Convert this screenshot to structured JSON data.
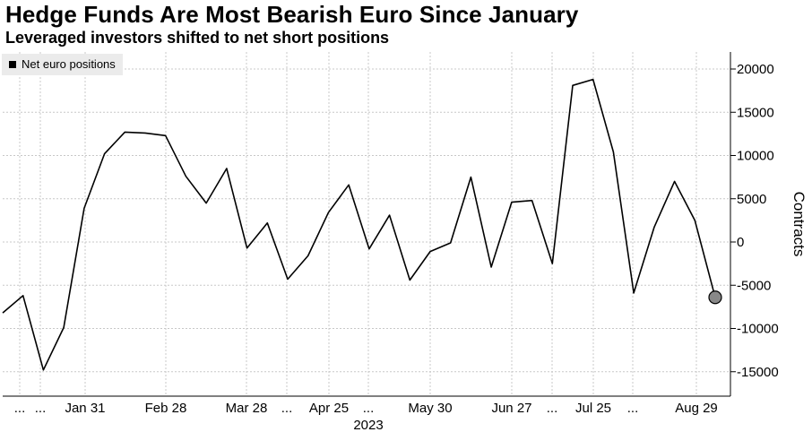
{
  "title": "Hedge Funds Are Most Bearish Euro Since January",
  "subtitle": "Leveraged investors shifted to net short positions",
  "legend": {
    "label": "Net euro positions",
    "color": "#000000"
  },
  "chart_data": {
    "type": "line",
    "title": "Hedge Funds Are Most Bearish Euro Since January",
    "subtitle": "Leveraged investors shifted to net short positions",
    "ylabel": "Contracts",
    "xlabel": "",
    "year_label": "2023",
    "ylim": [
      -17500,
      21000
    ],
    "yticks": [
      20000,
      15000,
      10000,
      5000,
      0,
      -5000,
      -10000,
      -15000
    ],
    "y_axis_side": "right",
    "grid": true,
    "legend_position": "top-left",
    "x_tick_labels": [
      "...",
      "...",
      "Jan 31",
      "Feb 28",
      "Mar 28",
      "...",
      "Apr 25",
      "...",
      "May 30",
      "Jun 27",
      "...",
      "Jul 25",
      "...",
      "Aug 29"
    ],
    "series": [
      {
        "name": "Net euro positions",
        "color": "#000000",
        "values": [
          -8200,
          -6200,
          -14800,
          -9900,
          3900,
          10200,
          12700,
          12600,
          12300,
          7600,
          4500,
          8500,
          -700,
          2200,
          -4300,
          -1600,
          3400,
          6600,
          -800,
          3100,
          -4400,
          -1100,
          -100,
          7500,
          -2900,
          4600,
          4800,
          -2500,
          18100,
          18800,
          10400,
          -5900,
          1700,
          7000,
          2500,
          -6400
        ]
      }
    ],
    "last_point_marker": true
  }
}
